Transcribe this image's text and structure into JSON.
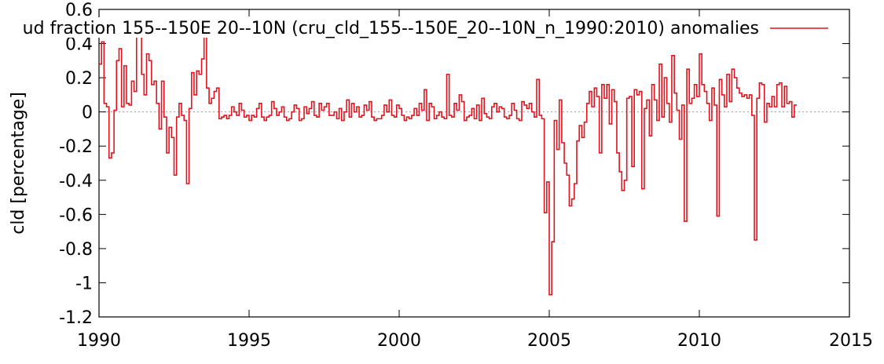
{
  "chart_data": {
    "type": "line",
    "title": "ud fraction 155--150E 20--10N (cru_cld_155--150E_20--10N_n_1990:2010) anomalies",
    "xlabel": "",
    "ylabel": "cld [percentage]",
    "xlim": [
      1990,
      2015
    ],
    "ylim": [
      -1.2,
      0.6
    ],
    "x_ticks": [
      "1990",
      "1995",
      "2000",
      "2005",
      "2010",
      "2015"
    ],
    "y_ticks": [
      "0.6",
      "0.4",
      "0.2",
      "0",
      "-0.2",
      "-0.4",
      "-0.6",
      "-0.8",
      "-1",
      "-1.2"
    ],
    "grid": false,
    "zero_line": true,
    "legend_position": "top-right",
    "series_color": "#e0141e",
    "series": [
      {
        "name": "",
        "x_start": 1990.0,
        "x_step": 0.08333,
        "style": "steps",
        "values": [
          0.28,
          0.41,
          0.05,
          0.03,
          -0.27,
          -0.24,
          0.01,
          0.3,
          0.37,
          0.03,
          0.27,
          0.05,
          0.04,
          0.18,
          0.12,
          0.45,
          0.46,
          0.22,
          0.1,
          0.34,
          0.3,
          0.16,
          0.18,
          0.05,
          -0.1,
          0.18,
          -0.03,
          -0.24,
          -0.09,
          -0.15,
          -0.37,
          -0.03,
          0.05,
          -0.02,
          -0.05,
          -0.42,
          0.02,
          0.23,
          0.1,
          0.24,
          0.22,
          0.31,
          0.49,
          0.14,
          0.05,
          0.08,
          0.12,
          0.14,
          -0.04,
          -0.03,
          -0.02,
          -0.04,
          -0.02,
          0.03,
          0.0,
          -0.02,
          0.05,
          0.01,
          -0.03,
          -0.02,
          -0.05,
          -0.02,
          -0.03,
          0.02,
          0.05,
          -0.03,
          -0.05,
          -0.03,
          -0.02,
          0.06,
          0.02,
          -0.02,
          0.0,
          0.03,
          -0.03,
          -0.05,
          -0.04,
          0.0,
          0.04,
          0.02,
          -0.05,
          -0.04,
          0.03,
          -0.01,
          0.02,
          0.06,
          -0.02,
          -0.03,
          0.05,
          0.01,
          0.03,
          0.05,
          -0.02,
          -0.02,
          0.0,
          -0.04,
          0.02,
          -0.05,
          0.0,
          0.07,
          -0.03,
          0.05,
          0.0,
          0.03,
          -0.03,
          -0.02,
          0.04,
          0.01,
          0.06,
          -0.03,
          -0.05,
          -0.04,
          -0.04,
          -0.02,
          0.04,
          0.0,
          0.07,
          -0.02,
          -0.03,
          0.04,
          0.02,
          -0.02,
          -0.05,
          -0.03,
          -0.04,
          -0.02,
          0.02,
          -0.02,
          0.05,
          0.01,
          0.13,
          -0.05,
          0.05,
          0.03,
          -0.04,
          -0.02,
          0.0,
          -0.03,
          -0.04,
          0.22,
          -0.02,
          -0.03,
          0.05,
          0.01,
          0.1,
          0.06,
          -0.05,
          -0.03,
          -0.02,
          0.02,
          -0.04,
          0.04,
          -0.05,
          0.08,
          -0.01,
          -0.03,
          -0.04,
          0.03,
          0.05,
          0.0,
          0.03,
          0.02,
          -0.03,
          -0.04,
          -0.02,
          0.05,
          0.01,
          -0.04,
          -0.05,
          0.06,
          0.04,
          0.02,
          0.05,
          0.0,
          -0.03,
          0.19,
          -0.02,
          -0.04,
          -0.59,
          -0.41,
          -1.07,
          -0.76,
          -0.05,
          -0.22,
          0.07,
          -0.18,
          -0.3,
          -0.37,
          -0.55,
          -0.51,
          -0.42,
          -0.17,
          -0.08,
          -0.15,
          -0.06,
          0.05,
          0.12,
          0.03,
          0.14,
          0.09,
          -0.24,
          0.16,
          0.08,
          0.16,
          -0.07,
          0.13,
          0.06,
          -0.24,
          -0.35,
          -0.46,
          -0.4,
          0.08,
          0.09,
          -0.32,
          0.13,
          0.1,
          0.12,
          -0.45,
          0.02,
          0.07,
          -0.14,
          0.16,
          0.07,
          -0.05,
          0.28,
          -0.03,
          0.2,
          0.05,
          -0.06,
          0.33,
          0.11,
          0.01,
          -0.16,
          0.04,
          -0.64,
          0.25,
          0.05,
          0.08,
          0.16,
          0.09,
          0.34,
          0.16,
          0.12,
          0.05,
          -0.05,
          0.14,
          0.04,
          -0.61,
          0.19,
          0.1,
          0.03,
          0.22,
          0.06,
          0.25,
          0.2,
          0.14,
          0.11,
          0.09,
          0.1,
          0.08,
          0.1,
          -0.02,
          -0.75,
          0.08,
          0.17,
          0.16,
          -0.06,
          0.05,
          0.03,
          0.09,
          0.03,
          0.16,
          0.17,
          0.03,
          0.15,
          0.05,
          0.06,
          -0.03,
          0.04
        ]
      }
    ]
  }
}
